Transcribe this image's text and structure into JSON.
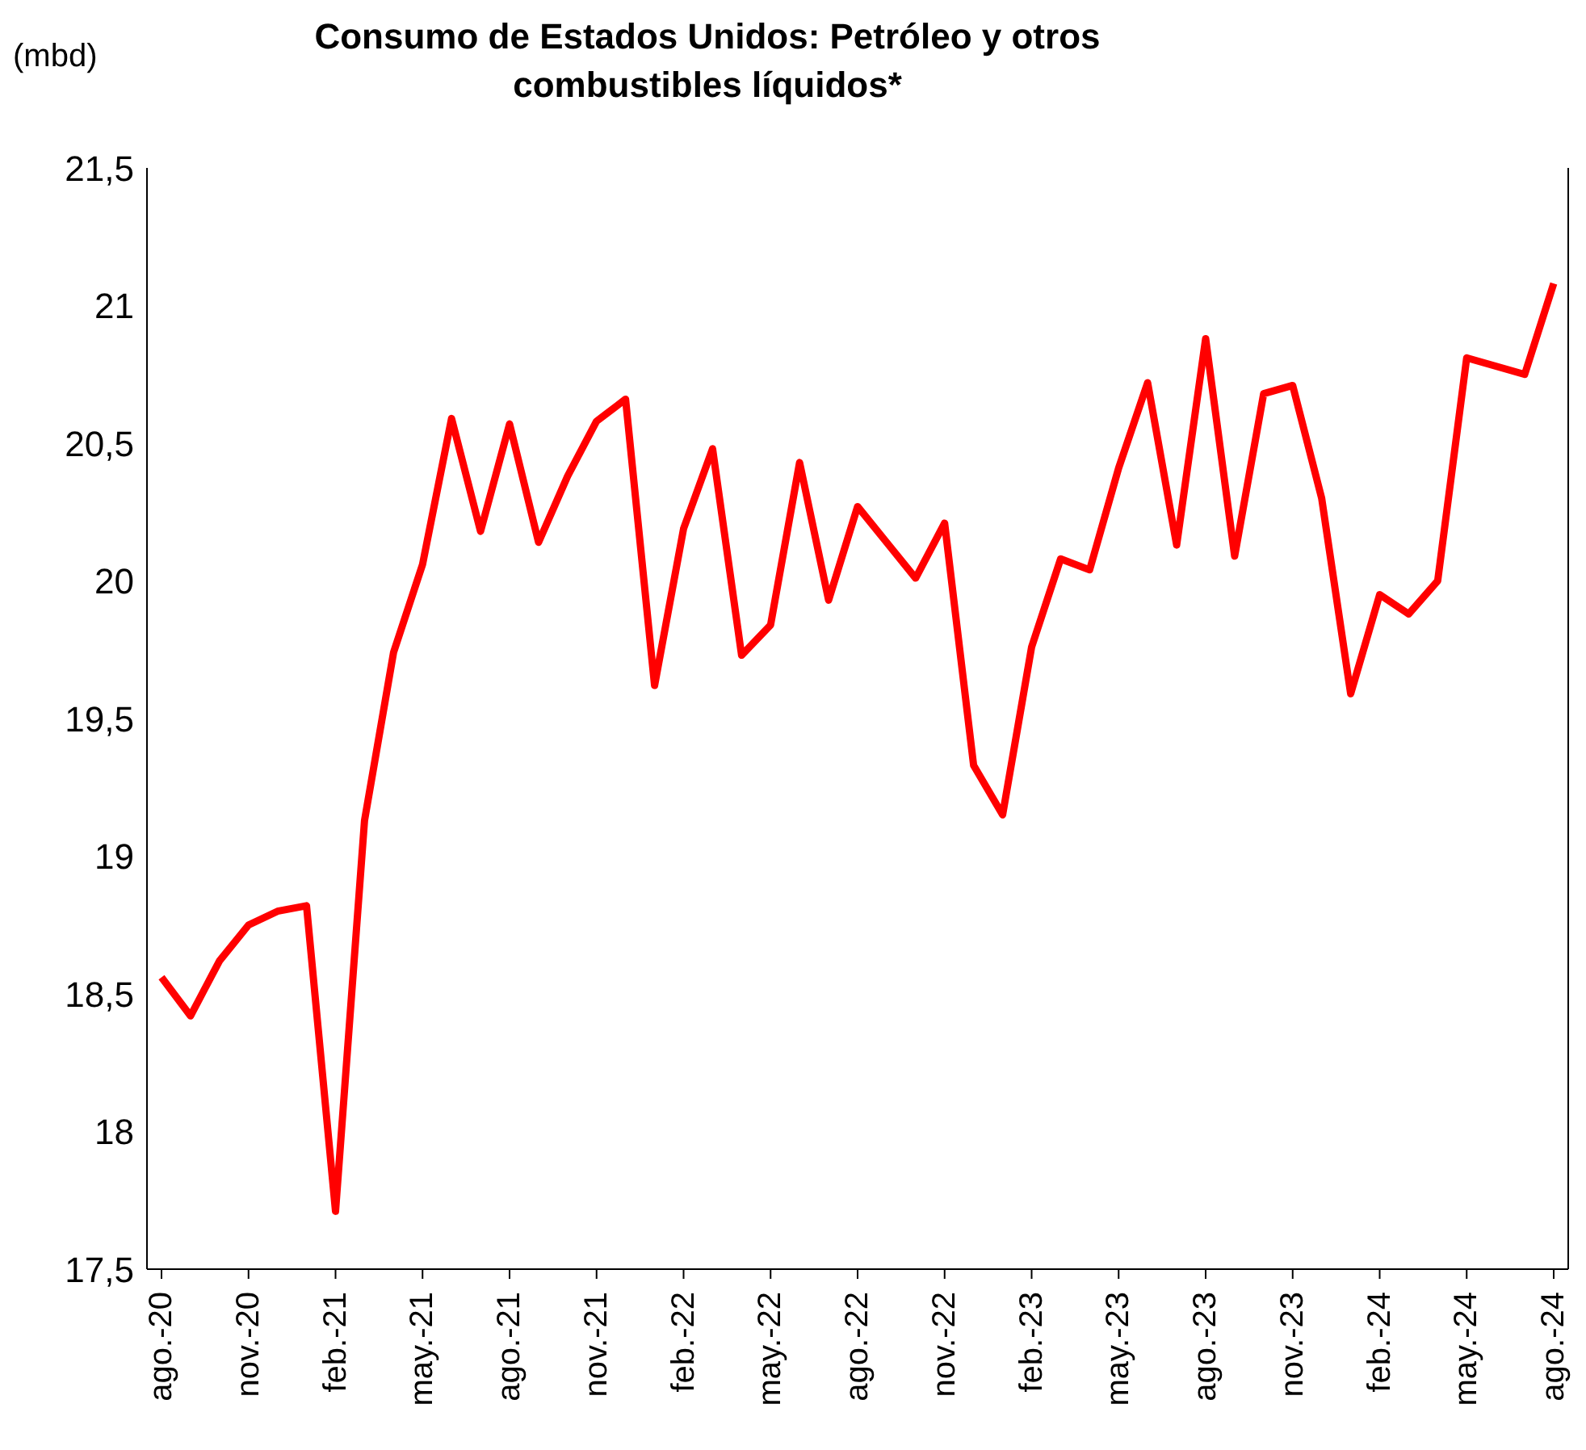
{
  "chart_data": {
    "type": "line",
    "title": "Consumo de Estados Unidos: Petróleo y otros combustibles líquidos*",
    "ylabel": "(mbd)",
    "categories": [
      "ago.-20",
      null,
      null,
      "nov.-20",
      null,
      null,
      "feb.-21",
      null,
      null,
      "may.-21",
      null,
      null,
      "ago.-21",
      null,
      null,
      "nov.-21",
      null,
      null,
      "feb.-22",
      null,
      null,
      "may.-22",
      null,
      null,
      "ago.-22",
      null,
      null,
      "nov.-22",
      null,
      null,
      "feb.-23",
      null,
      null,
      "may.-23",
      null,
      null,
      "ago.-23",
      null,
      null,
      "nov.-23",
      null,
      null,
      "feb.-24",
      null,
      null,
      "may.-24",
      null,
      null,
      "ago.-24"
    ],
    "series": [
      {
        "color": "#ff0000",
        "values": [
          18.56,
          18.42,
          18.62,
          18.75,
          18.8,
          18.82,
          17.71,
          19.13,
          19.74,
          20.06,
          20.59,
          20.18,
          20.57,
          20.14,
          20.38,
          20.58,
          20.66,
          19.62,
          20.19,
          20.48,
          19.73,
          19.84,
          20.43,
          19.93,
          20.27,
          20.14,
          20.01,
          20.21,
          19.33,
          19.15,
          19.76,
          20.08,
          20.04,
          20.41,
          20.72,
          20.13,
          20.88,
          20.09,
          20.68,
          20.71,
          20.3,
          19.59,
          19.95,
          19.88,
          20.0,
          20.81,
          20.78,
          20.75,
          21.08
        ]
      }
    ],
    "ylim": [
      17.5,
      21.5
    ],
    "yticks": [
      {
        "value": 17.5,
        "label": "17,5"
      },
      18,
      {
        "value": 18.5,
        "label": "18,5"
      },
      19,
      {
        "value": 19.5,
        "label": "19,5"
      },
      20,
      {
        "value": 20.5,
        "label": "20,5"
      },
      21,
      {
        "value": 21.5,
        "label": "21,5"
      }
    ],
    "grid": false,
    "marker": "none",
    "line_style": "solid"
  }
}
